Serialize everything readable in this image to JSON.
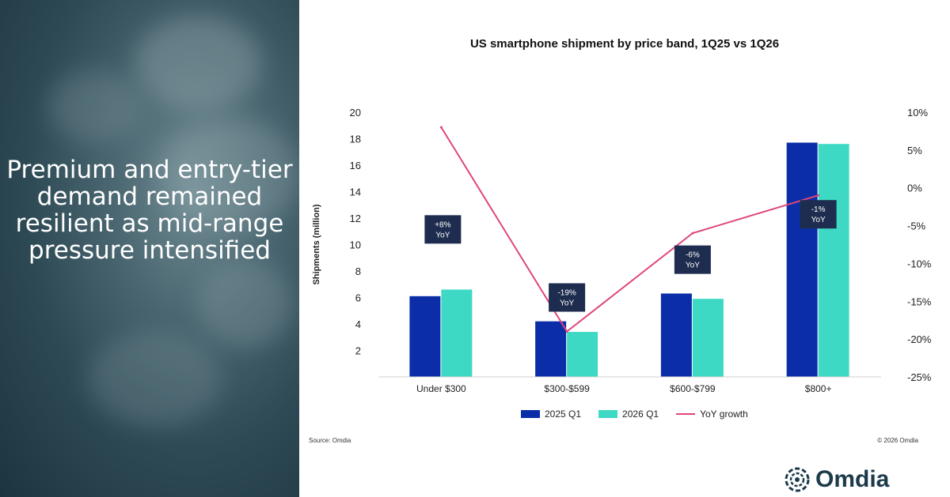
{
  "headline": "Premium and entry-tier demand remained resilient as mid-range pressure intensified",
  "chart_data": {
    "type": "bar",
    "title": "US smartphone shipment by price band, 1Q25 vs 1Q26",
    "categories": [
      "Under $300",
      "$300-$599",
      "$600-$799",
      "$800+"
    ],
    "series": [
      {
        "name": "2025 Q1",
        "type": "bar",
        "axis": "left",
        "color": "#0b2ea8",
        "values": [
          6.1,
          4.2,
          6.3,
          17.7
        ]
      },
      {
        "name": "2026 Q1",
        "type": "bar",
        "axis": "left",
        "color": "#3dd9c5",
        "values": [
          6.6,
          3.4,
          5.9,
          17.6
        ]
      },
      {
        "name": "YoY growth",
        "type": "line",
        "axis": "right",
        "color": "#e0457b",
        "values": [
          8,
          -19,
          -6,
          -1
        ]
      }
    ],
    "annotations": [
      "+8%\nYoY",
      "-19%\nYoY",
      "-6%\nYoY",
      "-1%\nYoY"
    ],
    "ylabel": "Shipments (million)",
    "ylim": [
      0,
      20
    ],
    "y_ticks": [
      "20",
      "18",
      "16",
      "14",
      "12",
      "10",
      "8",
      "6",
      "4",
      "2"
    ],
    "y2lim": [
      -25,
      10
    ],
    "y2_ticks": [
      "10%",
      "5%",
      "0%",
      "-5%",
      "-10%",
      "-15%",
      "-20%",
      "-25%"
    ],
    "legend": "bottom",
    "grid": false
  },
  "source": "Source: Omdia",
  "copyright": "© 2026 Omdia",
  "logo": {
    "name": "Omdia"
  },
  "colors": {
    "panel": "#2e4a55",
    "annotation_box": "#1e2d4f"
  }
}
